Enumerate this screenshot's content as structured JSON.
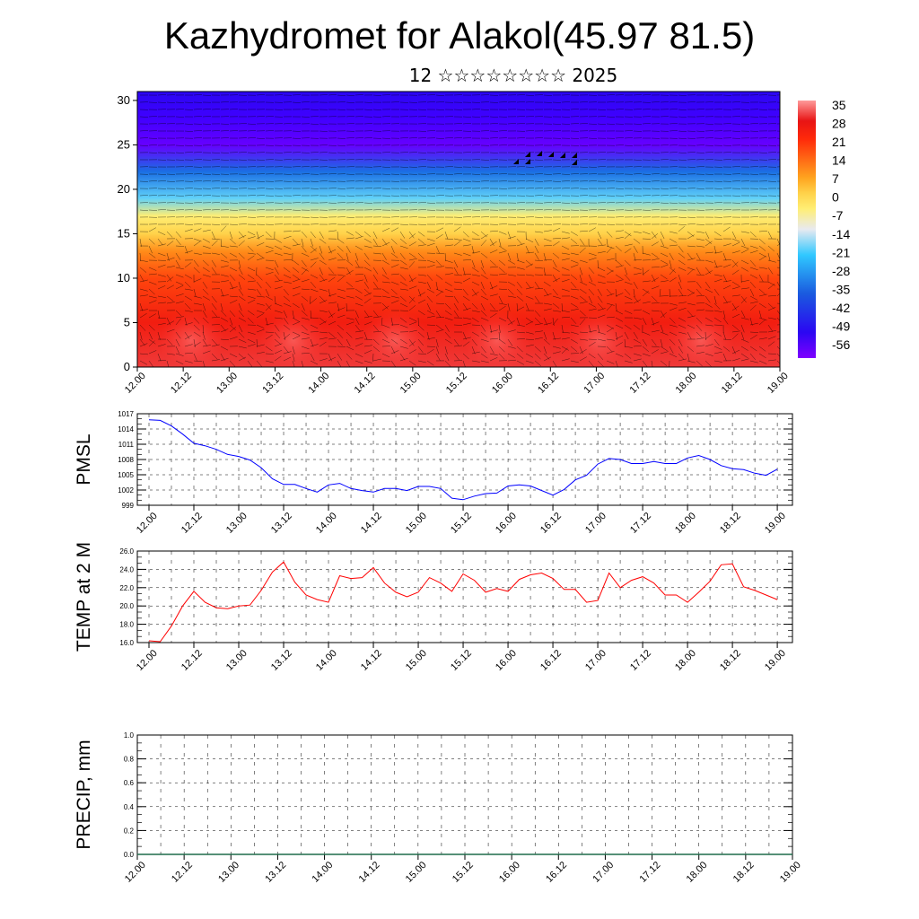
{
  "title": "Kazhydromet for Alakol(45.97 81.5)",
  "subtitle": "12 ☆☆☆☆☆☆☆☆ 2025",
  "time_labels": [
    "12.00",
    "12.12",
    "13.00",
    "13.12",
    "14.00",
    "14.12",
    "15.00",
    "15.12",
    "16.00",
    "16.12",
    "17.00",
    "17.12",
    "18.00",
    "18.12",
    "19.00"
  ],
  "chart_data": [
    {
      "type": "heatmap",
      "name_panel": "vertical temperature cross-section with wind barbs",
      "y_ticks": [
        "0",
        "5",
        "10",
        "15",
        "20",
        "25",
        "30"
      ],
      "ylim": [
        0,
        31
      ],
      "colorbar_labels": [
        "35",
        "28",
        "21",
        "14",
        "7",
        "0",
        "-7",
        "-14",
        "-21",
        "-28",
        "-35",
        "-42",
        "-49",
        "-56"
      ],
      "temperature_profile": [
        {
          "level": 0,
          "temp": 30
        },
        {
          "level": 5,
          "temp": 25
        },
        {
          "level": 10,
          "temp": 18
        },
        {
          "level": 13,
          "temp": 10
        },
        {
          "level": 15,
          "temp": 0
        },
        {
          "level": 17,
          "temp": -7
        },
        {
          "level": 19,
          "temp": -25
        },
        {
          "level": 22,
          "temp": -40
        },
        {
          "level": 25,
          "temp": -58
        },
        {
          "level": 28,
          "temp": -55
        },
        {
          "level": 31,
          "temp": -52
        }
      ]
    },
    {
      "type": "line",
      "ylabel": "PMSL",
      "y_ticks": [
        "999",
        "1002",
        "1005",
        "1008",
        "1011",
        "1014",
        "1017"
      ],
      "ylim": [
        999,
        1017
      ],
      "x": [
        0,
        1,
        2,
        3,
        4,
        5,
        6,
        7,
        8,
        9,
        10,
        11,
        12,
        13,
        14,
        15,
        16,
        17,
        18,
        19,
        20,
        21,
        22,
        23,
        24,
        25,
        26,
        27,
        28,
        29,
        30,
        31,
        32,
        33,
        34,
        35,
        36,
        37,
        38,
        39,
        40,
        41,
        42,
        43,
        44,
        45,
        46,
        47,
        48,
        49,
        50,
        51,
        52,
        53,
        54,
        55,
        56
      ],
      "series": [
        {
          "color": "#0000ff",
          "values": [
            1015.8,
            1015.7,
            1014.6,
            1013.0,
            1011.2,
            1010.7,
            1010.0,
            1009.0,
            1008.6,
            1007.9,
            1006.4,
            1004.2,
            1003.1,
            1003.1,
            1002.3,
            1001.6,
            1003.0,
            1003.3,
            1002.3,
            1001.9,
            1001.6,
            1002.3,
            1002.3,
            1001.9,
            1002.7,
            1002.7,
            1002.3,
            1000.4,
            1000.1,
            1000.8,
            1001.3,
            1001.4,
            1002.8,
            1003.0,
            1002.8,
            1001.9,
            1001.0,
            1002.1,
            1004.0,
            1004.9,
            1007.1,
            1008.2,
            1008.0,
            1007.2,
            1007.2,
            1007.6,
            1007.2,
            1007.2,
            1008.3,
            1008.8,
            1008.0,
            1006.8,
            1006.2,
            1006.0,
            1005.3,
            1004.9,
            1006.1
          ]
        }
      ]
    },
    {
      "type": "line",
      "ylabel": "TEMP at 2 M",
      "y_ticks": [
        "16.0",
        "18.0",
        "20.0",
        "22.0",
        "24.0",
        "26.0"
      ],
      "ylim": [
        16,
        26
      ],
      "x": [
        0,
        1,
        2,
        3,
        4,
        5,
        6,
        7,
        8,
        9,
        10,
        11,
        12,
        13,
        14,
        15,
        16,
        17,
        18,
        19,
        20,
        21,
        22,
        23,
        24,
        25,
        26,
        27,
        28,
        29,
        30,
        31,
        32,
        33,
        34,
        35,
        36,
        37,
        38,
        39,
        40,
        41,
        42,
        43,
        44,
        45,
        46,
        47,
        48,
        49,
        50,
        51,
        52,
        53,
        54,
        55,
        56
      ],
      "series": [
        {
          "color": "#ff0000",
          "values": [
            16.2,
            16.1,
            17.8,
            20.0,
            21.6,
            20.4,
            19.8,
            19.7,
            20.0,
            20.1,
            21.7,
            23.7,
            24.8,
            22.6,
            21.2,
            20.7,
            20.4,
            23.3,
            23.0,
            23.1,
            24.2,
            22.5,
            21.5,
            21.0,
            21.5,
            23.1,
            22.5,
            21.6,
            23.5,
            22.8,
            21.5,
            21.9,
            21.6,
            22.9,
            23.4,
            23.6,
            23.0,
            21.8,
            21.8,
            20.4,
            20.6,
            23.6,
            22.0,
            22.8,
            23.2,
            22.5,
            21.2,
            21.2,
            20.4,
            21.5,
            22.7,
            24.5,
            24.6,
            22.1,
            21.7,
            21.2,
            20.7
          ]
        }
      ]
    },
    {
      "type": "bar",
      "ylabel": "PRECIP, mm",
      "y_ticks": [
        "0.0",
        "0.2",
        "0.4",
        "0.6",
        "0.8",
        "1.0"
      ],
      "ylim": [
        0,
        1
      ],
      "values": [
        0,
        0,
        0,
        0,
        0,
        0,
        0,
        0,
        0,
        0,
        0,
        0,
        0,
        0,
        0,
        0,
        0,
        0,
        0,
        0,
        0,
        0,
        0,
        0,
        0,
        0,
        0,
        0,
        0,
        0,
        0,
        0,
        0,
        0,
        0,
        0,
        0,
        0,
        0,
        0,
        0,
        0,
        0,
        0,
        0,
        0,
        0,
        0,
        0,
        0,
        0,
        0,
        0,
        0,
        0,
        0,
        0
      ]
    }
  ]
}
